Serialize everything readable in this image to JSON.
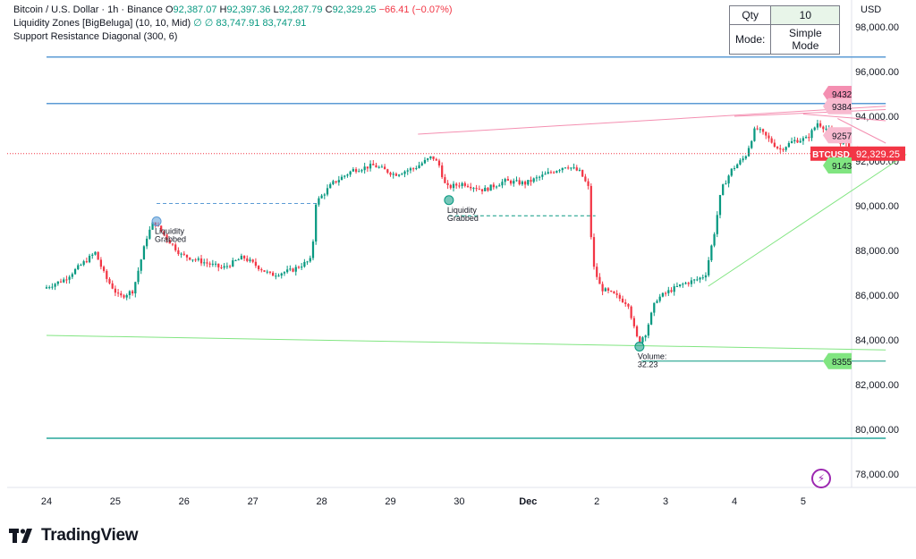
{
  "legend": {
    "symbol": "Bitcoin / U.S. Dollar · 1h · Binance",
    "open_label": "O",
    "open": "92,387.07",
    "high_label": "H",
    "high": "92,397.36",
    "low_label": "L",
    "low": "92,287.79",
    "close_label": "C",
    "close": "92,329.25",
    "change": "−66.41 (−0.07%)",
    "indicator1": "Liquidity Zones [BigBeluga] (10, 10, Mid)",
    "indicator1_values": "∅  ∅  83,747.91  83,747.91",
    "indicator2": "Support Resistance Diagonal (300, 6)"
  },
  "widget": {
    "qty_label": "Qty",
    "qty_value": "10",
    "mode_label": "Mode:",
    "mode_value": "Simple Mode"
  },
  "currency": "USD",
  "brand": "TradingView",
  "colors": {
    "up": "#089981",
    "down": "#f23645",
    "pink": "#f48fb1",
    "green_line": "#81e581",
    "blue_line": "#5b9bd5",
    "teal_line": "#26a69a"
  },
  "chart_data": {
    "type": "candlestick",
    "title": "Bitcoin / U.S. Dollar · 1h · Binance",
    "x_ticks": [
      "24",
      "25",
      "26",
      "27",
      "28",
      "29",
      "30",
      "Dec",
      "2",
      "3",
      "4",
      "5"
    ],
    "y_ticks": [
      "78,000.00",
      "80,000.00",
      "82,000.00",
      "84,000.00",
      "86,000.00",
      "88,000.00",
      "90,000.00",
      "92,000.00",
      "94,000.00",
      "96,000.00",
      "98,000.00"
    ],
    "ylim": [
      76800,
      98500
    ],
    "xlim": [
      0,
      12.5
    ],
    "last_price": {
      "label": "BTCUSD",
      "value": "92,329.25",
      "y": 92329.25
    },
    "path": [
      [
        0,
        86300
      ],
      [
        0.3,
        86700
      ],
      [
        0.6,
        87500
      ],
      [
        0.75,
        87900
      ],
      [
        0.9,
        86800
      ],
      [
        1.1,
        85900
      ],
      [
        1.3,
        86200
      ],
      [
        1.5,
        88600
      ],
      [
        1.6,
        89300
      ],
      [
        1.8,
        88500
      ],
      [
        2.0,
        87800
      ],
      [
        2.3,
        87500
      ],
      [
        2.6,
        87200
      ],
      [
        2.9,
        87700
      ],
      [
        3.1,
        87300
      ],
      [
        3.3,
        86900
      ],
      [
        3.6,
        87100
      ],
      [
        3.9,
        87600
      ],
      [
        3.95,
        90100
      ],
      [
        4.2,
        91000
      ],
      [
        4.5,
        91600
      ],
      [
        4.8,
        91800
      ],
      [
        5.1,
        91400
      ],
      [
        5.4,
        91700
      ],
      [
        5.65,
        92200
      ],
      [
        5.75,
        91800
      ],
      [
        5.85,
        90800
      ],
      [
        6.1,
        91000
      ],
      [
        6.4,
        90700
      ],
      [
        6.7,
        91100
      ],
      [
        7.0,
        91000
      ],
      [
        7.3,
        91400
      ],
      [
        7.6,
        91800
      ],
      [
        7.8,
        91500
      ],
      [
        7.92,
        90800
      ],
      [
        7.98,
        87400
      ],
      [
        8.1,
        86300
      ],
      [
        8.3,
        86000
      ],
      [
        8.5,
        85600
      ],
      [
        8.6,
        84300
      ],
      [
        8.65,
        83900
      ],
      [
        8.75,
        84300
      ],
      [
        8.9,
        85800
      ],
      [
        9.1,
        86200
      ],
      [
        9.3,
        86500
      ],
      [
        9.5,
        86700
      ],
      [
        9.62,
        86900
      ],
      [
        9.75,
        88800
      ],
      [
        9.85,
        90700
      ],
      [
        10.0,
        91600
      ],
      [
        10.2,
        92200
      ],
      [
        10.35,
        93500
      ],
      [
        10.5,
        93100
      ],
      [
        10.7,
        92500
      ],
      [
        10.9,
        92900
      ],
      [
        11.1,
        93000
      ],
      [
        11.25,
        93700
      ],
      [
        11.4,
        93400
      ],
      [
        11.6,
        92800
      ],
      [
        11.75,
        92600
      ],
      [
        11.9,
        92200
      ],
      [
        12.05,
        92400
      ],
      [
        12.2,
        92329
      ]
    ],
    "lines": [
      {
        "name": "resistance-blue-top",
        "color": "#5b9bd5",
        "x1": 0,
        "y1": 96650,
        "x2": 12.2,
        "y2": 96650
      },
      {
        "name": "resistance-blue-mid",
        "color": "#5b9bd5",
        "x1": 0,
        "y1": 94570,
        "x2": 12.2,
        "y2": 94570
      },
      {
        "name": "support-teal-bottom",
        "color": "#26a69a",
        "x1": 0,
        "y1": 79600,
        "x2": 12.2,
        "y2": 79600
      },
      {
        "name": "diagonal-green-low",
        "color": "#81e581",
        "x1": 0,
        "y1": 84200,
        "x2": 12.2,
        "y2": 83550
      },
      {
        "name": "diagonal-green-up",
        "color": "#81e581",
        "x1": 9.62,
        "y1": 86400,
        "x2": 12.5,
        "y2": 92300
      },
      {
        "name": "diagonal-pink-1",
        "color": "#f48fb1",
        "x1": 5.4,
        "y1": 93200,
        "x2": 12.2,
        "y2": 94450
      },
      {
        "name": "diagonal-pink-2",
        "color": "#f48fb1",
        "x1": 10.0,
        "y1": 94000,
        "x2": 12.2,
        "y2": 94300
      },
      {
        "name": "diagonal-pink-3",
        "color": "#f48fb1",
        "x1": 11.0,
        "y1": 94100,
        "x2": 12.2,
        "y2": 93800
      },
      {
        "name": "diagonal-pink-4",
        "color": "#f48fb1",
        "x1": 11.5,
        "y1": 93900,
        "x2": 12.2,
        "y2": 92800
      },
      {
        "name": "liq-level-1",
        "color": "#5b9bd5",
        "dash": true,
        "x1": 1.6,
        "y1": 90100,
        "x2": 3.95,
        "y2": 90100
      },
      {
        "name": "liq-level-2",
        "color": "#089981",
        "dash": true,
        "x1": 5.85,
        "y1": 89550,
        "x2": 7.98,
        "y2": 89550
      },
      {
        "name": "volume-level",
        "color": "#089981",
        "x1": 8.65,
        "y1": 83050,
        "x2": 12.2,
        "y2": 83050
      }
    ],
    "price_tags": [
      {
        "text": "9432",
        "y": 95000,
        "color": "#f48fb1"
      },
      {
        "text": "9384",
        "y": 94450,
        "color": "#f8bbd0"
      },
      {
        "text": "9257",
        "y": 93150,
        "color": "#f8bbd0"
      },
      {
        "text": "9143",
        "y": 91800,
        "color": "#81e581"
      },
      {
        "text": "8355",
        "y": 83050,
        "color": "#81e581"
      }
    ],
    "annotations": [
      {
        "text": "Liquidity",
        "text2": "Grabbed",
        "x": 1.6,
        "y": 89300,
        "color": "#5b9bd5"
      },
      {
        "text": "Liquidity",
        "text2": "Grabbed",
        "x": 5.85,
        "y": 90250,
        "color": "#089981"
      },
      {
        "text": "Volume:",
        "text2": "32.23",
        "x": 8.62,
        "y": 83700,
        "color": "#089981"
      }
    ]
  }
}
